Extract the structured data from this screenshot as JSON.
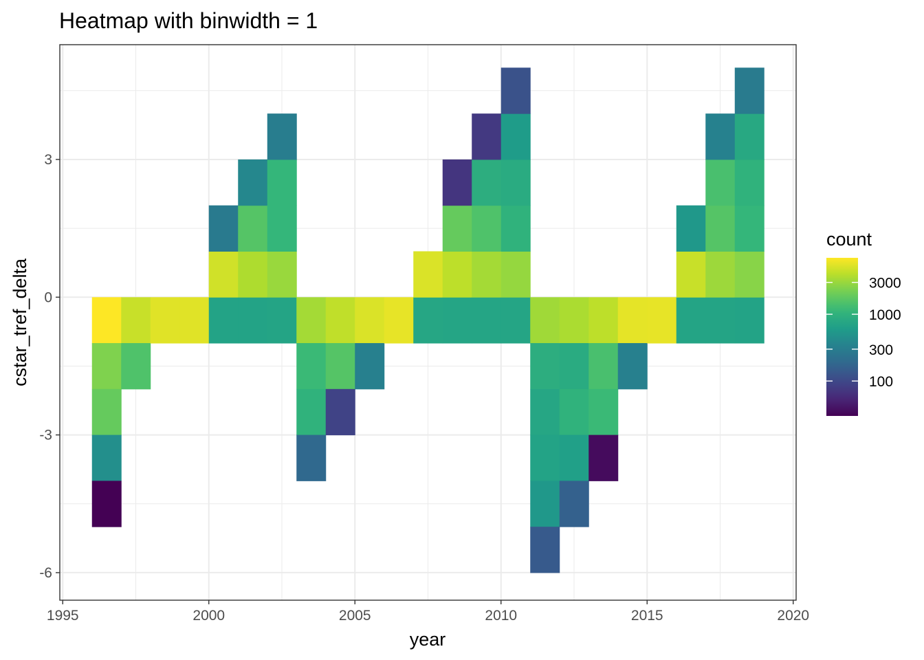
{
  "chart_data": {
    "type": "heatmap",
    "title": "Heatmap with binwidth = 1",
    "xlabel": "year",
    "ylabel": "cstar_tref_delta",
    "xlim": [
      1994.9,
      2020.1
    ],
    "ylim": [
      -6.6,
      5.5
    ],
    "x_ticks": [
      1995,
      2000,
      2005,
      2010,
      2015,
      2020
    ],
    "y_ticks": [
      -6,
      -3,
      0,
      3
    ],
    "x_tick_labels": [
      "1995",
      "2000",
      "2005",
      "2010",
      "2015",
      "2020"
    ],
    "y_tick_labels": [
      "-6",
      "-3",
      "0",
      "3"
    ],
    "x_minor": [
      1997.5,
      2002.5,
      2007.5,
      2012.5,
      2017.5
    ],
    "y_minor": [
      -4.5,
      -1.5,
      1.5,
      4.5
    ],
    "grid": true,
    "binwidth": 1,
    "legend": {
      "title": "count",
      "position": "right",
      "scale": "log",
      "range": [
        30,
        7000
      ],
      "breaks": [
        100,
        300,
        1000,
        3000
      ],
      "break_labels": [
        "100",
        "300",
        "1000",
        "3000"
      ],
      "palette": "viridis"
    },
    "tiles": [
      {
        "x": 1996,
        "y": -1,
        "count": 7000
      },
      {
        "x": 1996,
        "y": -2,
        "count": 2400
      },
      {
        "x": 1996,
        "y": -3,
        "count": 1900
      },
      {
        "x": 1996,
        "y": -4,
        "count": 450
      },
      {
        "x": 1996,
        "y": -5,
        "count": 30
      },
      {
        "x": 1997,
        "y": -1,
        "count": 4500
      },
      {
        "x": 1997,
        "y": -2,
        "count": 1500
      },
      {
        "x": 1998,
        "y": -1,
        "count": 5500
      },
      {
        "x": 1999,
        "y": -1,
        "count": 5500
      },
      {
        "x": 2000,
        "y": -1,
        "count": 700
      },
      {
        "x": 2000,
        "y": 0,
        "count": 4800
      },
      {
        "x": 2000,
        "y": 1,
        "count": 280
      },
      {
        "x": 2001,
        "y": -1,
        "count": 700
      },
      {
        "x": 2001,
        "y": 0,
        "count": 3600
      },
      {
        "x": 2001,
        "y": 1,
        "count": 1600
      },
      {
        "x": 2001,
        "y": 2,
        "count": 380
      },
      {
        "x": 2002,
        "y": -1,
        "count": 720
      },
      {
        "x": 2002,
        "y": 0,
        "count": 3000
      },
      {
        "x": 2002,
        "y": 1,
        "count": 1100
      },
      {
        "x": 2002,
        "y": 2,
        "count": 1100
      },
      {
        "x": 2002,
        "y": 3,
        "count": 300
      },
      {
        "x": 2003,
        "y": -1,
        "count": 3300
      },
      {
        "x": 2003,
        "y": -2,
        "count": 1200
      },
      {
        "x": 2003,
        "y": -3,
        "count": 1000
      },
      {
        "x": 2003,
        "y": -4,
        "count": 190
      },
      {
        "x": 2004,
        "y": -1,
        "count": 4200
      },
      {
        "x": 2004,
        "y": -2,
        "count": 1600
      },
      {
        "x": 2004,
        "y": -3,
        "count": 90
      },
      {
        "x": 2005,
        "y": -1,
        "count": 5200
      },
      {
        "x": 2005,
        "y": -2,
        "count": 320
      },
      {
        "x": 2006,
        "y": -1,
        "count": 5800
      },
      {
        "x": 2007,
        "y": -1,
        "count": 750
      },
      {
        "x": 2007,
        "y": 0,
        "count": 5200
      },
      {
        "x": 2008,
        "y": -1,
        "count": 730
      },
      {
        "x": 2008,
        "y": 0,
        "count": 4100
      },
      {
        "x": 2008,
        "y": 1,
        "count": 1900
      },
      {
        "x": 2008,
        "y": 2,
        "count": 70
      },
      {
        "x": 2009,
        "y": -1,
        "count": 730
      },
      {
        "x": 2009,
        "y": 0,
        "count": 3300
      },
      {
        "x": 2009,
        "y": 1,
        "count": 1500
      },
      {
        "x": 2009,
        "y": 2,
        "count": 900
      },
      {
        "x": 2009,
        "y": 3,
        "count": 75
      },
      {
        "x": 2010,
        "y": -1,
        "count": 730
      },
      {
        "x": 2010,
        "y": 0,
        "count": 2900
      },
      {
        "x": 2010,
        "y": 1,
        "count": 1000
      },
      {
        "x": 2010,
        "y": 2,
        "count": 850
      },
      {
        "x": 2010,
        "y": 3,
        "count": 600
      },
      {
        "x": 2010,
        "y": 4,
        "count": 120
      },
      {
        "x": 2011,
        "y": -1,
        "count": 3200
      },
      {
        "x": 2011,
        "y": -2,
        "count": 900
      },
      {
        "x": 2011,
        "y": -3,
        "count": 750
      },
      {
        "x": 2011,
        "y": -4,
        "count": 700
      },
      {
        "x": 2011,
        "y": -5,
        "count": 550
      },
      {
        "x": 2011,
        "y": -6,
        "count": 140
      },
      {
        "x": 2012,
        "y": -1,
        "count": 3500
      },
      {
        "x": 2012,
        "y": -2,
        "count": 850
      },
      {
        "x": 2012,
        "y": -3,
        "count": 1000
      },
      {
        "x": 2012,
        "y": -4,
        "count": 650
      },
      {
        "x": 2012,
        "y": -5,
        "count": 160
      },
      {
        "x": 2013,
        "y": -1,
        "count": 4100
      },
      {
        "x": 2013,
        "y": -2,
        "count": 1400
      },
      {
        "x": 2013,
        "y": -3,
        "count": 1200
      },
      {
        "x": 2013,
        "y": -4,
        "count": 35
      },
      {
        "x": 2014,
        "y": -1,
        "count": 5700
      },
      {
        "x": 2014,
        "y": -2,
        "count": 320
      },
      {
        "x": 2015,
        "y": -1,
        "count": 5800
      },
      {
        "x": 2016,
        "y": -1,
        "count": 720
      },
      {
        "x": 2016,
        "y": 0,
        "count": 4500
      },
      {
        "x": 2016,
        "y": 1,
        "count": 550
      },
      {
        "x": 2017,
        "y": -1,
        "count": 720
      },
      {
        "x": 2017,
        "y": 0,
        "count": 3100
      },
      {
        "x": 2017,
        "y": 1,
        "count": 1600
      },
      {
        "x": 2017,
        "y": 2,
        "count": 1400
      },
      {
        "x": 2017,
        "y": 3,
        "count": 330
      },
      {
        "x": 2018,
        "y": -1,
        "count": 700
      },
      {
        "x": 2018,
        "y": 0,
        "count": 2600
      },
      {
        "x": 2018,
        "y": 1,
        "count": 1100
      },
      {
        "x": 2018,
        "y": 2,
        "count": 1000
      },
      {
        "x": 2018,
        "y": 3,
        "count": 800
      },
      {
        "x": 2018,
        "y": 4,
        "count": 290
      }
    ]
  }
}
